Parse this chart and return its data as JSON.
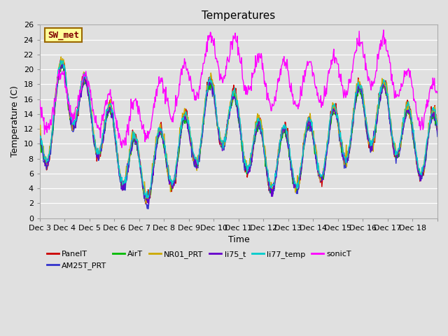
{
  "title": "Temperatures",
  "xlabel": "Time",
  "ylabel": "Temperature (C)",
  "ylim": [
    0,
    26
  ],
  "background_color": "#e0e0e0",
  "plot_bg_color": "#e0e0e0",
  "grid_color": "#ffffff",
  "series_colors": {
    "PanelT": "#cc0000",
    "AM25T_PRT": "#3333cc",
    "AirT": "#00bb00",
    "NR01_PRT": "#ccaa00",
    "li75_t": "#6600cc",
    "li77_temp": "#00cccc",
    "sonicT": "#ff00ff"
  },
  "legend_box": {
    "label": "SW_met",
    "bg_color": "#ffff99",
    "border_color": "#996600",
    "text_color": "#800000",
    "fontsize": 9
  },
  "xtick_positions": [
    0,
    1,
    2,
    3,
    4,
    5,
    6,
    7,
    8,
    9,
    10,
    11,
    12,
    13,
    14,
    15,
    16
  ],
  "xtick_labels": [
    "Dec 3",
    "Dec 4",
    "Dec 5",
    "Dec 6",
    "Dec 7",
    "Dec 8",
    "Dec 9",
    "Dec 10",
    "Dec 11",
    "Dec 12",
    "Dec 13",
    "Dec 14",
    "Dec 15",
    "Dec 16",
    "Dec 17",
    "Dec 18",
    ""
  ],
  "ytick_labels": [
    0,
    2,
    4,
    6,
    8,
    10,
    12,
    14,
    16,
    18,
    20,
    22,
    24,
    26
  ],
  "linewidth": 1.0,
  "title_fontsize": 11,
  "axis_fontsize": 9,
  "tick_fontsize": 8
}
